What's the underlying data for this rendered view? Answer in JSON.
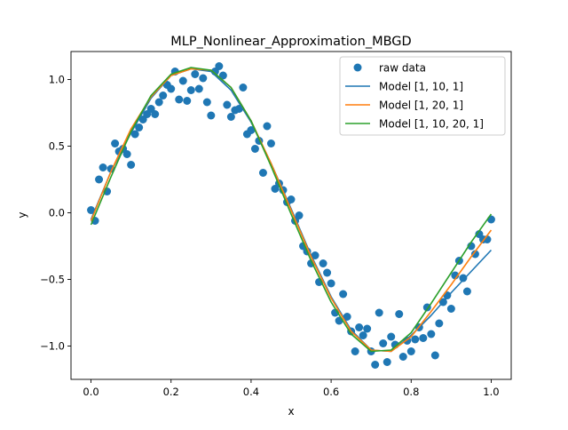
{
  "chart_data": {
    "type": "scatter",
    "title": "MLP_Nonlinear_Approximation_MBGD",
    "xlabel": "x",
    "ylabel": "y",
    "xlim": [
      -0.05,
      1.05
    ],
    "ylim": [
      -1.25,
      1.21
    ],
    "xticks": [
      0.0,
      0.2,
      0.4,
      0.6,
      0.8,
      1.0
    ],
    "xtick_labels": [
      "0.0",
      "0.2",
      "0.4",
      "0.6",
      "0.8",
      "1.0"
    ],
    "yticks": [
      -1.0,
      -0.5,
      0.0,
      0.5,
      1.0
    ],
    "ytick_labels": [
      "−1.0",
      "−0.5",
      "0.0",
      "0.5",
      "1.0"
    ],
    "grid": false,
    "legend_position": "top-right",
    "scatter_series": {
      "name": "raw data",
      "color": "#1f77b4",
      "points": [
        [
          0.0,
          0.02
        ],
        [
          0.01,
          -0.06
        ],
        [
          0.02,
          0.25
        ],
        [
          0.03,
          0.34
        ],
        [
          0.04,
          0.16
        ],
        [
          0.05,
          0.33
        ],
        [
          0.06,
          0.52
        ],
        [
          0.07,
          0.46
        ],
        [
          0.08,
          0.48
        ],
        [
          0.09,
          0.44
        ],
        [
          0.1,
          0.36
        ],
        [
          0.11,
          0.59
        ],
        [
          0.12,
          0.64
        ],
        [
          0.13,
          0.7
        ],
        [
          0.14,
          0.74
        ],
        [
          0.15,
          0.78
        ],
        [
          0.16,
          0.74
        ],
        [
          0.17,
          0.83
        ],
        [
          0.18,
          0.88
        ],
        [
          0.19,
          0.96
        ],
        [
          0.2,
          0.93
        ],
        [
          0.21,
          1.06
        ],
        [
          0.22,
          0.85
        ],
        [
          0.23,
          0.99
        ],
        [
          0.24,
          0.84
        ],
        [
          0.25,
          0.92
        ],
        [
          0.26,
          1.04
        ],
        [
          0.27,
          0.93
        ],
        [
          0.28,
          1.01
        ],
        [
          0.29,
          0.83
        ],
        [
          0.3,
          0.73
        ],
        [
          0.31,
          1.06
        ],
        [
          0.32,
          1.1
        ],
        [
          0.33,
          1.03
        ],
        [
          0.34,
          0.81
        ],
        [
          0.35,
          0.72
        ],
        [
          0.36,
          0.77
        ],
        [
          0.37,
          0.78
        ],
        [
          0.38,
          0.94
        ],
        [
          0.39,
          0.59
        ],
        [
          0.4,
          0.62
        ],
        [
          0.41,
          0.48
        ],
        [
          0.42,
          0.54
        ],
        [
          0.43,
          0.3
        ],
        [
          0.44,
          0.65
        ],
        [
          0.45,
          0.52
        ],
        [
          0.46,
          0.18
        ],
        [
          0.47,
          0.22
        ],
        [
          0.48,
          0.17
        ],
        [
          0.49,
          0.08
        ],
        [
          0.5,
          0.1
        ],
        [
          0.51,
          -0.06
        ],
        [
          0.52,
          -0.02
        ],
        [
          0.53,
          -0.25
        ],
        [
          0.54,
          -0.29
        ],
        [
          0.55,
          -0.38
        ],
        [
          0.56,
          -0.32
        ],
        [
          0.57,
          -0.52
        ],
        [
          0.58,
          -0.38
        ],
        [
          0.59,
          -0.45
        ],
        [
          0.6,
          -0.53
        ],
        [
          0.61,
          -0.75
        ],
        [
          0.62,
          -0.81
        ],
        [
          0.63,
          -0.61
        ],
        [
          0.64,
          -0.78
        ],
        [
          0.65,
          -0.89
        ],
        [
          0.66,
          -1.04
        ],
        [
          0.67,
          -0.86
        ],
        [
          0.68,
          -0.92
        ],
        [
          0.69,
          -0.87
        ],
        [
          0.7,
          -1.04
        ],
        [
          0.71,
          -1.14
        ],
        [
          0.72,
          -0.75
        ],
        [
          0.73,
          -0.98
        ],
        [
          0.74,
          -1.12
        ],
        [
          0.75,
          -0.93
        ],
        [
          0.76,
          -0.99
        ],
        [
          0.77,
          -0.76
        ],
        [
          0.78,
          -1.08
        ],
        [
          0.79,
          -0.96
        ],
        [
          0.8,
          -1.04
        ],
        [
          0.81,
          -0.95
        ],
        [
          0.82,
          -0.86
        ],
        [
          0.83,
          -0.94
        ],
        [
          0.84,
          -0.71
        ],
        [
          0.85,
          -0.91
        ],
        [
          0.86,
          -1.07
        ],
        [
          0.87,
          -0.83
        ],
        [
          0.88,
          -0.67
        ],
        [
          0.89,
          -0.62
        ],
        [
          0.9,
          -0.72
        ],
        [
          0.91,
          -0.47
        ],
        [
          0.92,
          -0.36
        ],
        [
          0.93,
          -0.49
        ],
        [
          0.94,
          -0.59
        ],
        [
          0.95,
          -0.25
        ],
        [
          0.96,
          -0.31
        ],
        [
          0.97,
          -0.16
        ],
        [
          0.98,
          -0.2
        ],
        [
          0.99,
          -0.2
        ],
        [
          1.0,
          -0.05
        ]
      ]
    },
    "line_series": [
      {
        "name": "Model [1, 10, 1]",
        "color": "#1f77b4",
        "x": [
          0.0,
          0.05,
          0.1,
          0.15,
          0.2,
          0.25,
          0.3,
          0.35,
          0.4,
          0.45,
          0.5,
          0.55,
          0.6,
          0.65,
          0.7,
          0.75,
          0.8,
          0.85,
          0.9,
          0.95,
          1.0
        ],
        "y": [
          -0.05,
          0.31,
          0.6,
          0.86,
          1.03,
          1.08,
          1.06,
          0.92,
          0.68,
          0.37,
          0.03,
          -0.32,
          -0.63,
          -0.88,
          -1.03,
          -1.04,
          -0.92,
          -0.77,
          -0.6,
          -0.44,
          -0.28
        ]
      },
      {
        "name": "Model [1, 20, 1]",
        "color": "#ff7f0e",
        "x": [
          0.0,
          0.05,
          0.1,
          0.15,
          0.2,
          0.25,
          0.3,
          0.35,
          0.4,
          0.45,
          0.5,
          0.55,
          0.6,
          0.65,
          0.7,
          0.75,
          0.8,
          0.85,
          0.9,
          0.95,
          1.0
        ],
        "y": [
          -0.06,
          0.31,
          0.63,
          0.87,
          1.03,
          1.08,
          1.07,
          0.94,
          0.69,
          0.37,
          0.02,
          -0.33,
          -0.64,
          -0.89,
          -1.03,
          -1.04,
          -0.93,
          -0.74,
          -0.54,
          -0.33,
          -0.13
        ]
      },
      {
        "name": "Model [1, 10, 20, 1]",
        "color": "#2ca02c",
        "x": [
          0.0,
          0.05,
          0.1,
          0.15,
          0.2,
          0.25,
          0.3,
          0.35,
          0.4,
          0.45,
          0.5,
          0.55,
          0.6,
          0.65,
          0.7,
          0.75,
          0.8,
          0.85,
          0.9,
          0.95,
          1.0
        ],
        "y": [
          -0.09,
          0.27,
          0.61,
          0.88,
          1.04,
          1.09,
          1.07,
          0.94,
          0.69,
          0.35,
          -0.01,
          -0.36,
          -0.67,
          -0.91,
          -1.04,
          -1.03,
          -0.9,
          -0.68,
          -0.45,
          -0.22,
          -0.01
        ]
      }
    ]
  }
}
